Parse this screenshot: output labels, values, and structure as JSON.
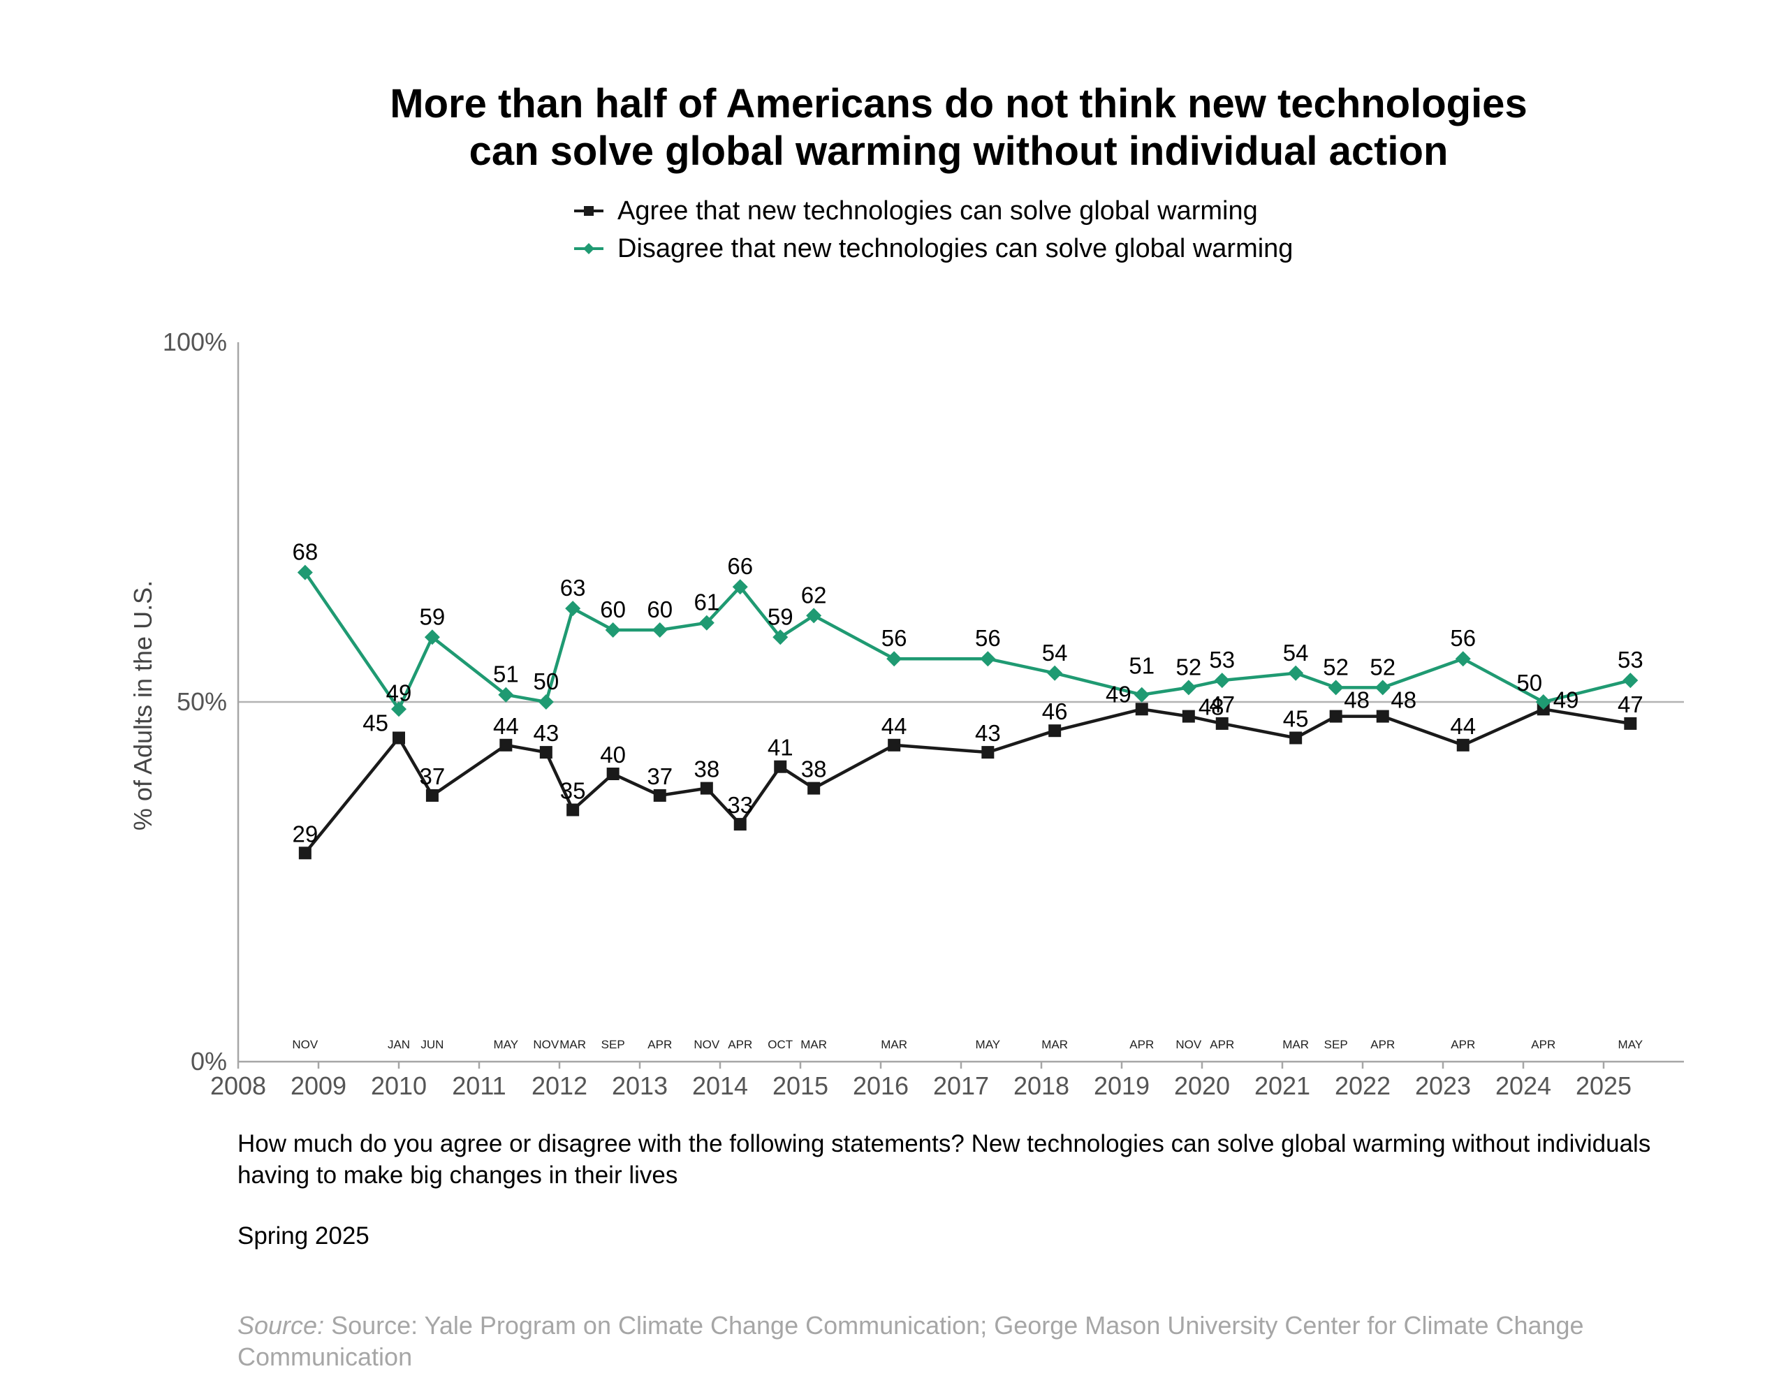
{
  "chart_data": {
    "type": "line",
    "title": "More than half of Americans do not think new technologies can solve global warming without individual action",
    "title_lines": [
      "More than half of Americans do not think new technologies",
      "can solve global warming without individual action"
    ],
    "ylabel": "% of Adults in the U.S.",
    "ylim": [
      0,
      100
    ],
    "y_ticks": [
      "0%",
      "50%",
      "100%"
    ],
    "xlim": [
      2008,
      2026
    ],
    "x_tick_labels": [
      "2008",
      "2009",
      "2010",
      "2011",
      "2012",
      "2013",
      "2014",
      "2015",
      "2016",
      "2017",
      "2018",
      "2019",
      "2020",
      "2021",
      "2022",
      "2023",
      "2024",
      "2025"
    ],
    "reference_line": 50,
    "legend_position": "top",
    "survey_waves": [
      {
        "date": "2008-11",
        "label": "NOV"
      },
      {
        "date": "2010-01",
        "label": "JAN"
      },
      {
        "date": "2010-06",
        "label": "JUN"
      },
      {
        "date": "2011-05",
        "label": "MAY"
      },
      {
        "date": "2011-11",
        "label": "NOV"
      },
      {
        "date": "2012-03",
        "label": "MAR"
      },
      {
        "date": "2012-09",
        "label": "SEP"
      },
      {
        "date": "2013-04",
        "label": "APR"
      },
      {
        "date": "2013-11",
        "label": "NOV"
      },
      {
        "date": "2014-04",
        "label": "APR"
      },
      {
        "date": "2014-10",
        "label": "OCT"
      },
      {
        "date": "2015-03",
        "label": "MAR"
      },
      {
        "date": "2016-03",
        "label": "MAR"
      },
      {
        "date": "2017-05",
        "label": "MAY"
      },
      {
        "date": "2018-03",
        "label": "MAR"
      },
      {
        "date": "2019-04",
        "label": "APR"
      },
      {
        "date": "2019-11",
        "label": "NOV"
      },
      {
        "date": "2020-04",
        "label": "APR"
      },
      {
        "date": "2021-03",
        "label": "MAR"
      },
      {
        "date": "2021-09",
        "label": "SEP"
      },
      {
        "date": "2022-04",
        "label": "APR"
      },
      {
        "date": "2023-04",
        "label": "APR"
      },
      {
        "date": "2024-04",
        "label": "APR"
      },
      {
        "date": "2025-05",
        "label": "MAY"
      }
    ],
    "series": [
      {
        "name": "Agree that new technologies can solve global warming",
        "color": "#1a1a1a",
        "marker": "square",
        "values": [
          29,
          45,
          37,
          44,
          43,
          35,
          40,
          37,
          38,
          33,
          41,
          38,
          44,
          43,
          46,
          49,
          48,
          47,
          45,
          48,
          48,
          44,
          49,
          47
        ]
      },
      {
        "name": "Disagree that new technologies can solve global warming",
        "color": "#1f9a72",
        "marker": "diamond",
        "values": [
          68,
          49,
          59,
          51,
          50,
          63,
          60,
          60,
          61,
          66,
          59,
          62,
          56,
          56,
          54,
          51,
          52,
          53,
          54,
          52,
          52,
          56,
          50,
          53
        ]
      }
    ]
  },
  "question": "How much do you agree or disagree with the following statements? New technologies can solve global warming without individuals having to make big changes in their lives",
  "period": "Spring 2025",
  "source": {
    "prefix": "Source:",
    "text": " Source: Yale Program on Climate Change Communication; George Mason University Center for Climate Change Communication"
  }
}
